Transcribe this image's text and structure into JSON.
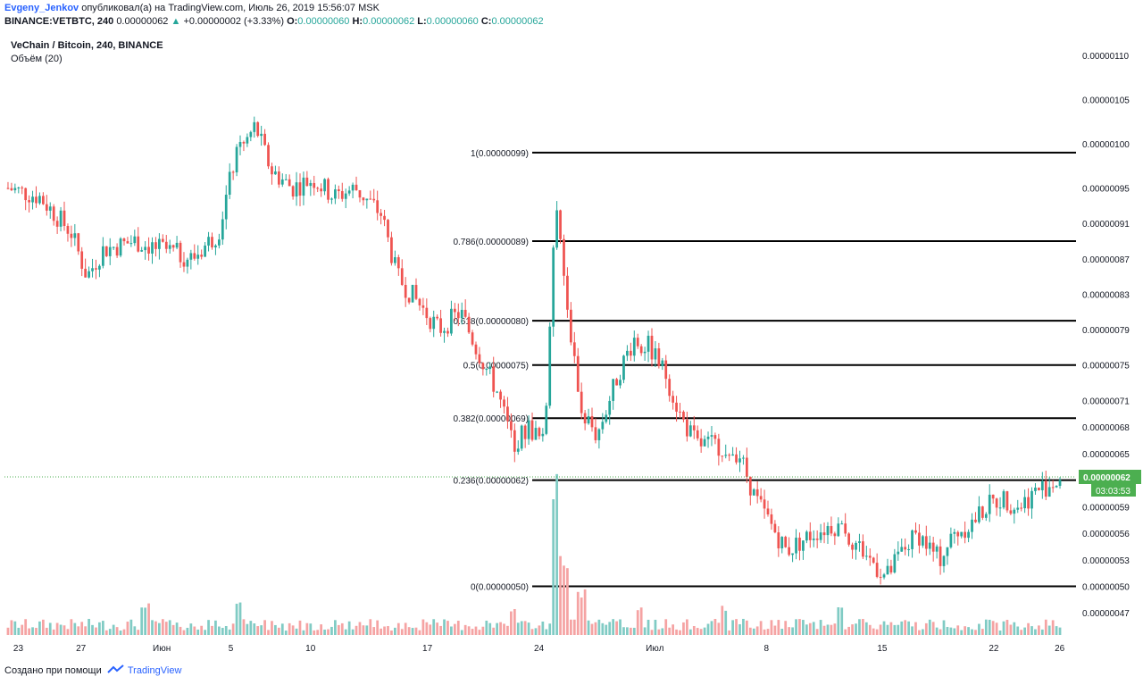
{
  "header": {
    "author": "Evgeny_Jenkov",
    "published_text": "опубликовал(а) на TradingView.com, Июль 26, 2019 15:56:07 MSK",
    "symbol_line": "BINANCE:VETBTC, 240",
    "last": "0.00000062",
    "change_arrow": "▲",
    "change": "+0.00000002 (+3.33%)",
    "o_label": "O:",
    "o_value": "0.00000060",
    "h_label": "H:",
    "h_value": "0.00000062",
    "l_label": "L:",
    "l_value": "0.00000060",
    "c_label": "C:",
    "c_value": "0.00000062",
    "series_title": "VeChain / Bitcoin, 240, BINANCE",
    "volume_label": "Объём (20)"
  },
  "footer": {
    "created_with": "Создано при помощи",
    "brand": "TradingView"
  },
  "colors": {
    "up": "#26a69a",
    "down": "#ef5350",
    "volume_up": "#80cbc4",
    "volume_down": "#f5a3a3",
    "fib_line": "#000000",
    "price_tag": "#4caf50"
  },
  "chart_data": {
    "type": "candlestick",
    "symbol": "VETBTC",
    "interval": "240",
    "exchange": "BINANCE",
    "y_range": [
      4.43e-07,
      1.118e-06
    ],
    "y_ticks": [
      "0.00000110",
      "0.00000105",
      "0.00000100",
      "0.00000095",
      "0.00000091",
      "0.00000087",
      "0.00000083",
      "0.00000079",
      "0.00000075",
      "0.00000071",
      "0.00000068",
      "0.00000065",
      "0.00000059",
      "0.00000056",
      "0.00000053",
      "0.00000050",
      "0.00000047"
    ],
    "x_ticks": [
      "23",
      "27",
      "Июн",
      "5",
      "10",
      "17",
      "24",
      "Июл",
      "8",
      "15",
      "22",
      "26"
    ],
    "current_price_tag": "0.00000062",
    "countdown_tag": "03:03:53",
    "fibonacci": [
      {
        "level": "1",
        "price": "0.00000099",
        "label": "1(0.00000099)"
      },
      {
        "level": "0.786",
        "price": "0.00000089",
        "label": "0.786(0.00000089)"
      },
      {
        "level": "0.618",
        "price": "0.00000080",
        "label": "0.618(0.00000080)"
      },
      {
        "level": "0.5",
        "price": "0.00000075",
        "label": "0.5(0.00000075)"
      },
      {
        "level": "0.382",
        "price": "0.00000069",
        "label": "0.382(0.00000069)"
      },
      {
        "level": "0.236",
        "price": "0.00000062",
        "label": "0.236(0.00000062)"
      },
      {
        "level": "0",
        "price": "0.00000050",
        "label": "0(0.00000050)"
      }
    ],
    "close_path": [
      [
        0,
        9.5e-07
      ],
      [
        0.03,
        9.4e-07
      ],
      [
        0.06,
        9e-07
      ],
      [
        0.075,
        8.5e-07
      ],
      [
        0.09,
        8.8e-07
      ],
      [
        0.12,
        8.9e-07
      ],
      [
        0.15,
        8.8e-07
      ],
      [
        0.175,
        8.7e-07
      ],
      [
        0.2,
        9e-07
      ],
      [
        0.215,
        9.8e-07
      ],
      [
        0.235,
        1.02e-06
      ],
      [
        0.25,
        9.7e-07
      ],
      [
        0.27,
        9.5e-07
      ],
      [
        0.29,
        9.6e-07
      ],
      [
        0.31,
        9.4e-07
      ],
      [
        0.33,
        9.5e-07
      ],
      [
        0.355,
        9.2e-07
      ],
      [
        0.37,
        8.5e-07
      ],
      [
        0.39,
        8.2e-07
      ],
      [
        0.41,
        7.9e-07
      ],
      [
        0.43,
        8.1e-07
      ],
      [
        0.445,
        7.7e-07
      ],
      [
        0.465,
        7.2e-07
      ],
      [
        0.48,
        6.6e-07
      ],
      [
        0.495,
        6.8e-07
      ],
      [
        0.51,
        6.6e-07
      ],
      [
        0.52,
        9.4e-07
      ],
      [
        0.53,
        8.3e-07
      ],
      [
        0.545,
        7e-07
      ],
      [
        0.56,
        6.7e-07
      ],
      [
        0.58,
        7.4e-07
      ],
      [
        0.595,
        7.8e-07
      ],
      [
        0.61,
        7.7e-07
      ],
      [
        0.625,
        7.4e-07
      ],
      [
        0.64,
        6.9e-07
      ],
      [
        0.655,
        6.6e-07
      ],
      [
        0.675,
        6.6e-07
      ],
      [
        0.695,
        6.5e-07
      ],
      [
        0.71,
        6e-07
      ],
      [
        0.725,
        5.7e-07
      ],
      [
        0.74,
        5.4e-07
      ],
      [
        0.765,
        5.6e-07
      ],
      [
        0.785,
        5.7e-07
      ],
      [
        0.805,
        5.5e-07
      ],
      [
        0.82,
        5.3e-07
      ],
      [
        0.835,
        5.1e-07
      ],
      [
        0.85,
        5.4e-07
      ],
      [
        0.865,
        5.6e-07
      ],
      [
        0.885,
        5.3e-07
      ],
      [
        0.9,
        5.6e-07
      ],
      [
        0.915,
        5.7e-07
      ],
      [
        0.93,
        5.9e-07
      ],
      [
        0.945,
        6e-07
      ],
      [
        0.96,
        5.9e-07
      ],
      [
        0.98,
        6.1e-07
      ],
      [
        1.0,
        6.2e-07
      ]
    ],
    "volume_spikes": [
      [
        0.52,
        1.0
      ],
      [
        0.525,
        0.55
      ],
      [
        0.53,
        0.45
      ],
      [
        0.545,
        0.3
      ],
      [
        0.48,
        0.2
      ],
      [
        0.6,
        0.2
      ],
      [
        0.22,
        0.25
      ],
      [
        0.13,
        0.2
      ],
      [
        0.68,
        0.2
      ],
      [
        0.79,
        0.22
      ]
    ]
  }
}
